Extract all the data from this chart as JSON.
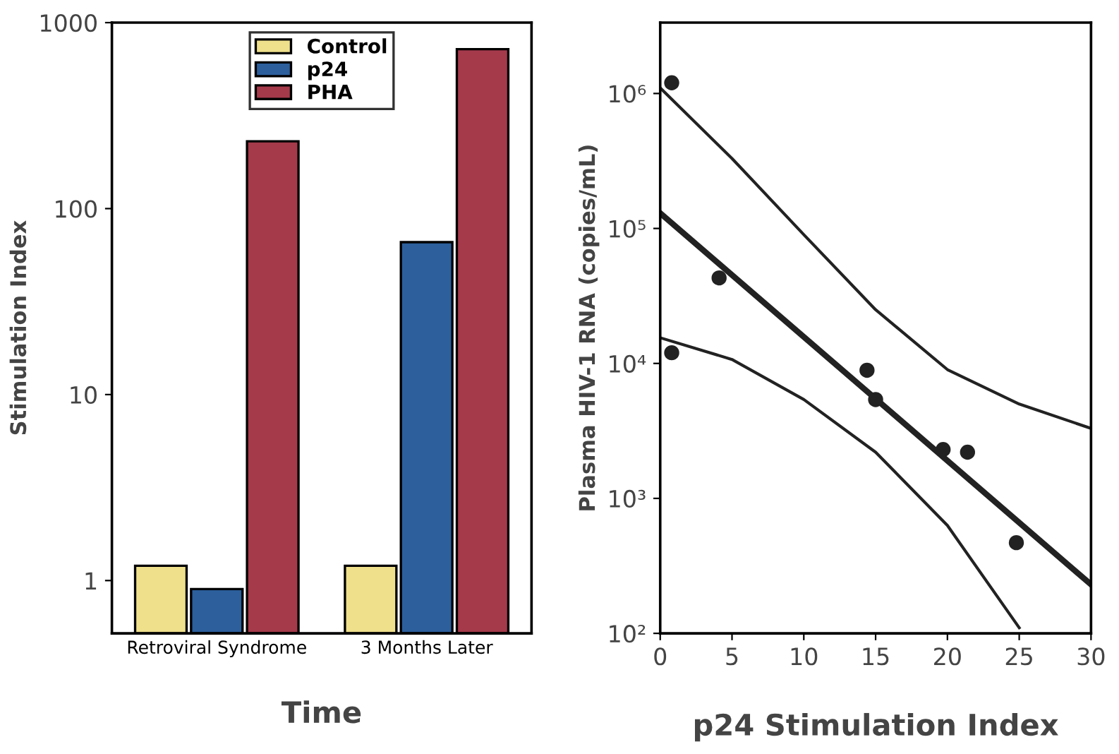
{
  "chart_data": [
    {
      "type": "bar",
      "xlabel": "Time",
      "ylabel": "Stimulation Index",
      "categories": [
        "Retroviral Syndrome",
        "3 Months Later"
      ],
      "series": [
        {
          "name": "Control",
          "color": "#efe08c",
          "values": [
            1.2,
            1.2
          ]
        },
        {
          "name": "p24",
          "color": "#2c5f9c",
          "values": [
            0.9,
            66
          ]
        },
        {
          "name": "PHA",
          "color": "#a53a4b",
          "values": [
            230,
            720
          ]
        }
      ],
      "log": "y",
      "ylim": [
        0.52,
        1000
      ],
      "yticks": [
        1,
        10,
        100,
        1000
      ],
      "grid": false,
      "legend": "top"
    },
    {
      "type": "scatter",
      "xlabel": "p24 Stimulation Index",
      "ylabel": "Plasma HIV-1 RNA (copies/mL)",
      "x": [
        0.8,
        4.1,
        0.8,
        14.4,
        15.0,
        19.7,
        21.4,
        24.8
      ],
      "series": [
        {
          "color": "#222222",
          "marker": "circle",
          "values": [
            1200000,
            43000,
            12000,
            8900,
            5400,
            2300,
            2200,
            470
          ]
        },
        {
          "type": "line",
          "color": "#222222",
          "x": [
            0,
            30
          ],
          "values": [
            130000,
            230
          ]
        },
        {
          "type": "line",
          "color": "#222222",
          "x": [
            0,
            5,
            10,
            15,
            20,
            25,
            30
          ],
          "values": [
            1100000,
            330000,
            90000,
            25000,
            9000,
            5000,
            3300
          ]
        },
        {
          "type": "line",
          "color": "#222222",
          "x": [
            0,
            5,
            10,
            15,
            20,
            25
          ],
          "values": [
            15500,
            10700,
            5400,
            2200,
            630,
            110
          ]
        }
      ],
      "log": "y",
      "xlim": [
        0,
        30
      ],
      "xticks": [
        0,
        5,
        10,
        15,
        20,
        25,
        30
      ],
      "ylim": [
        100,
        3350000
      ],
      "yticks": [
        {
          "value": 100,
          "label": "10²"
        },
        {
          "value": 1000,
          "label": "10³"
        },
        {
          "value": 10000,
          "label": "10⁴"
        },
        {
          "value": 100000,
          "label": "10⁵"
        },
        {
          "value": 1000000,
          "label": "10⁶"
        }
      ],
      "grid": false
    }
  ]
}
